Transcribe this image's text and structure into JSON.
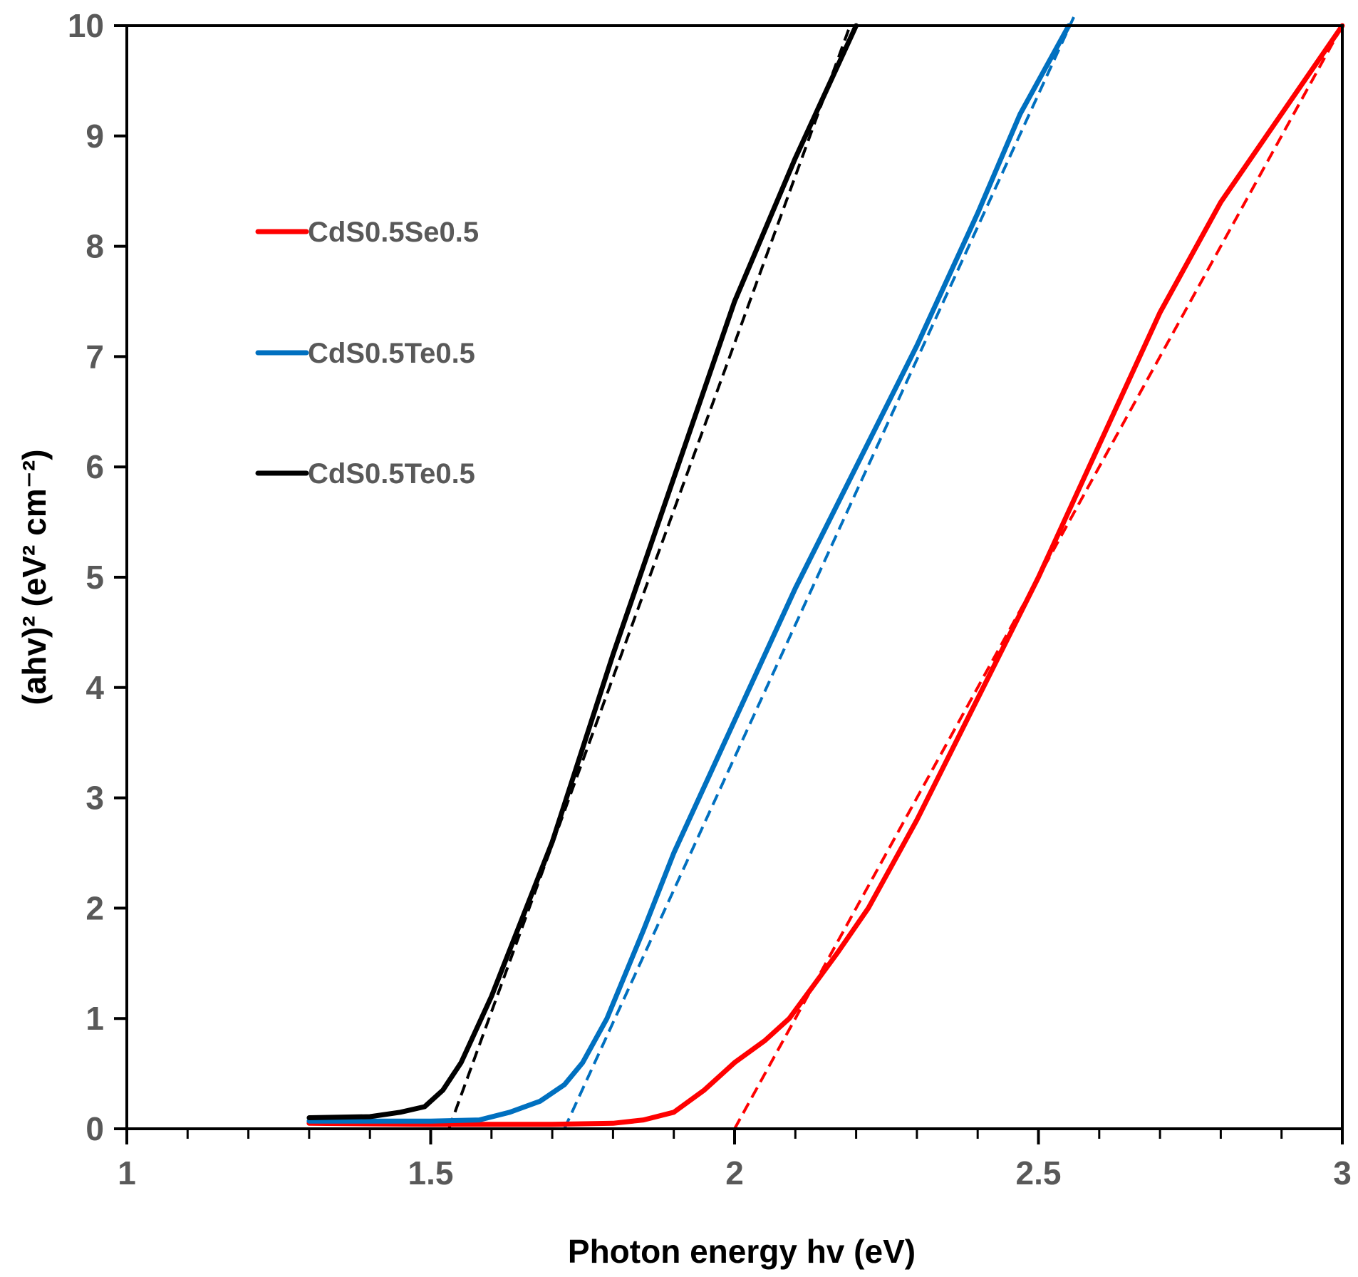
{
  "chart_data": {
    "type": "line",
    "title": "",
    "xlabel": "Photon energy hv (eV)",
    "ylabel": "(ahv)² (eV² cm⁻²)",
    "xlim": [
      1,
      3
    ],
    "ylim": [
      0,
      10
    ],
    "x_ticks": [
      1,
      1.5,
      2,
      2.5,
      3
    ],
    "x_tick_labels": [
      "1",
      "1.5",
      "2",
      "2.5",
      "3"
    ],
    "x_minor_step": 0.1,
    "y_ticks": [
      0,
      1,
      2,
      3,
      4,
      5,
      6,
      7,
      8,
      9,
      10
    ],
    "y_tick_labels": [
      "0",
      "1",
      "2",
      "3",
      "4",
      "5",
      "6",
      "7",
      "8",
      "9",
      "10"
    ],
    "grid": false,
    "legend_position": "upper-left",
    "series": [
      {
        "name": "CdS0.5Se0.5",
        "color": "#ff0000",
        "points": [
          [
            1.3,
            0.05
          ],
          [
            1.5,
            0.04
          ],
          [
            1.7,
            0.04
          ],
          [
            1.8,
            0.05
          ],
          [
            1.85,
            0.08
          ],
          [
            1.9,
            0.15
          ],
          [
            1.95,
            0.35
          ],
          [
            2.0,
            0.6
          ],
          [
            2.05,
            0.8
          ],
          [
            2.09,
            1.0
          ],
          [
            2.13,
            1.3
          ],
          [
            2.17,
            1.6
          ],
          [
            2.22,
            2.0
          ],
          [
            2.3,
            2.8
          ],
          [
            2.4,
            3.9
          ],
          [
            2.5,
            5.0
          ],
          [
            2.6,
            6.2
          ],
          [
            2.7,
            7.4
          ],
          [
            2.8,
            8.4
          ],
          [
            2.9,
            9.2
          ],
          [
            3.0,
            10.0
          ]
        ]
      },
      {
        "name": "CdS0.5Te0.5",
        "color": "#0070c0",
        "points": [
          [
            1.3,
            0.07
          ],
          [
            1.4,
            0.07
          ],
          [
            1.5,
            0.07
          ],
          [
            1.58,
            0.08
          ],
          [
            1.63,
            0.15
          ],
          [
            1.68,
            0.25
          ],
          [
            1.72,
            0.4
          ],
          [
            1.75,
            0.6
          ],
          [
            1.79,
            1.0
          ],
          [
            1.85,
            1.8
          ],
          [
            1.9,
            2.5
          ],
          [
            2.0,
            3.7
          ],
          [
            2.1,
            4.9
          ],
          [
            2.2,
            6.0
          ],
          [
            2.3,
            7.1
          ],
          [
            2.4,
            8.3
          ],
          [
            2.47,
            9.2
          ],
          [
            2.55,
            10.0
          ]
        ]
      },
      {
        "name": "CdS0.5Te0.5",
        "color": "#000000",
        "points": [
          [
            1.3,
            0.1
          ],
          [
            1.4,
            0.11
          ],
          [
            1.45,
            0.15
          ],
          [
            1.49,
            0.2
          ],
          [
            1.52,
            0.35
          ],
          [
            1.55,
            0.6
          ],
          [
            1.6,
            1.2
          ],
          [
            1.7,
            2.6
          ],
          [
            1.8,
            4.3
          ],
          [
            1.9,
            5.9
          ],
          [
            2.0,
            7.5
          ],
          [
            2.1,
            8.8
          ],
          [
            2.2,
            10.0
          ]
        ]
      }
    ],
    "fit_lines": [
      {
        "series": "CdS0.5Se0.5",
        "color": "#ff0000",
        "x": [
          2.0,
          3.0
        ],
        "y": [
          0,
          10
        ]
      },
      {
        "series": "CdS0.5Te0.5",
        "color": "#0070c0",
        "x": [
          1.72,
          2.56
        ],
        "y": [
          0,
          10.1
        ]
      },
      {
        "series": "CdS0.5Te0.5",
        "color": "#000000",
        "x": [
          1.53,
          2.19
        ],
        "y": [
          0,
          10
        ]
      }
    ]
  }
}
